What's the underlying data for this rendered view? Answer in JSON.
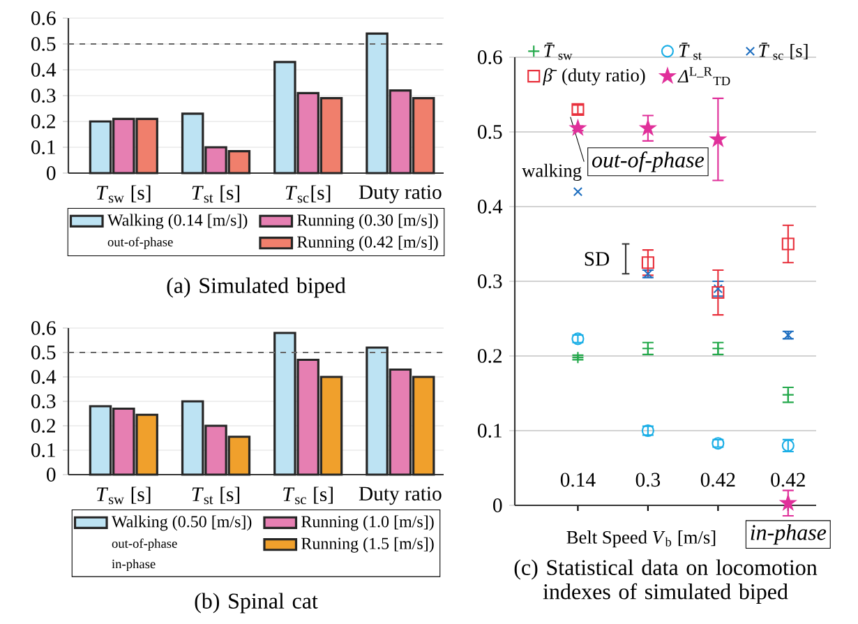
{
  "chart_data": [
    {
      "type": "bar",
      "title": "(a) Simulated biped",
      "categories": [
        "*T*$_{sw}$ [s]",
        "*T*$_{st}$ [s]",
        "*T*$_{sc}$[s]",
        "Duty ratio"
      ],
      "series": [
        {
          "name": "Walking (0.14 [m/s])",
          "color": "#bde3f3",
          "values": [
            0.2,
            0.23,
            0.43,
            0.54
          ]
        },
        {
          "name": "Running (0.30 [m/s])",
          "color": "#e67fb2",
          "values": [
            0.21,
            0.1,
            0.31,
            0.32
          ]
        },
        {
          "name": "Running (0.42 [m/s])",
          "color": "#f07f6c",
          "values": [
            0.21,
            0.085,
            0.29,
            0.29
          ]
        }
      ],
      "ylim": [
        0,
        0.6
      ],
      "yticks": [
        0,
        0.1,
        0.2,
        0.3,
        0.4,
        0.5,
        0.6
      ],
      "grid": "y",
      "ref_lines": [
        {
          "axis": "y",
          "value": 0.5,
          "color": "#666666",
          "line_style": "dashed"
        }
      ],
      "legend": "bottom",
      "annotations": [
        "out-of-phase"
      ]
    },
    {
      "type": "bar",
      "title": "(b) Spinal cat",
      "categories": [
        "*T*$_{sw}$ [s]",
        "*T*$_{st}$ [s]",
        "*T*$_{sc}$ [s]",
        "Duty ratio"
      ],
      "series": [
        {
          "name": "Walking (0.50 [m/s])",
          "color": "#bde3f3",
          "values": [
            0.28,
            0.3,
            0.58,
            0.52
          ]
        },
        {
          "name": "Running (1.0 [m/s])",
          "color": "#e67fb2",
          "values": [
            0.27,
            0.2,
            0.47,
            0.43
          ]
        },
        {
          "name": "Running (1.5 [m/s])",
          "color": "#f0a02c",
          "values": [
            0.245,
            0.155,
            0.4,
            0.4
          ]
        }
      ],
      "ylim": [
        0,
        0.6
      ],
      "yticks": [
        0,
        0.1,
        0.2,
        0.3,
        0.4,
        0.5,
        0.6
      ],
      "grid": "y",
      "ref_lines": [
        {
          "axis": "y",
          "value": 0.5,
          "color": "#666666",
          "line_style": "dashed"
        }
      ],
      "legend": "bottom",
      "annotations": [
        "out-of-phase",
        "in-phase"
      ]
    },
    {
      "type": "scatter",
      "title": "(c) Statistical data on locomotion indexes of simulated biped",
      "xlabel": "Belt Speed *V*$_{b}$ [m/s]",
      "categories": [
        "0.14",
        "0.3",
        "0.42",
        "0.42"
      ],
      "series": [
        {
          "name": "*T̄*$_{sw}$",
          "color": "#22a84a",
          "marker": "plus",
          "values": [
            0.198,
            0.21,
            0.21,
            0.148
          ],
          "errors": [
            0.003,
            0.008,
            0.008,
            0.01
          ]
        },
        {
          "name": "*T̄*$_{st}$",
          "color": "#1aaee6",
          "marker": "circle",
          "values": [
            0.223,
            0.1,
            0.083,
            0.08
          ],
          "errors": [
            0.005,
            0.006,
            0.005,
            0.008
          ]
        },
        {
          "name": "*T̄*$_{sc}$ [s]",
          "color": "#1f6fc0",
          "marker": "cross",
          "values": [
            0.42,
            0.31,
            0.29,
            0.228
          ],
          "errors": [
            null,
            0.005,
            0.01,
            0.005
          ]
        },
        {
          "name": "*β̄* (duty ratio)",
          "color": "#e8303c",
          "marker": "square",
          "values": [
            0.53,
            0.325,
            0.285,
            0.35
          ],
          "errors": [
            0.006,
            0.017,
            0.03,
            0.025
          ]
        },
        {
          "name": "*Δ*$^{L_R}$$_{TD}$",
          "color": "#e0309a",
          "marker": "star",
          "values": [
            0.505,
            0.505,
            0.49,
            0.003
          ],
          "errors": [
            0.003,
            0.017,
            0.055,
            0.017
          ]
        }
      ],
      "ylim": [
        0,
        0.6
      ],
      "yticks": [
        0,
        0.1,
        0.2,
        0.3,
        0.4,
        0.5,
        0.6
      ],
      "grid": "y",
      "legend": "top left",
      "annotations": [
        {
          "text": "walking",
          "x": "0.14",
          "y": 0.53
        },
        "out-of-phase",
        "SD",
        "in-phase"
      ]
    }
  ]
}
